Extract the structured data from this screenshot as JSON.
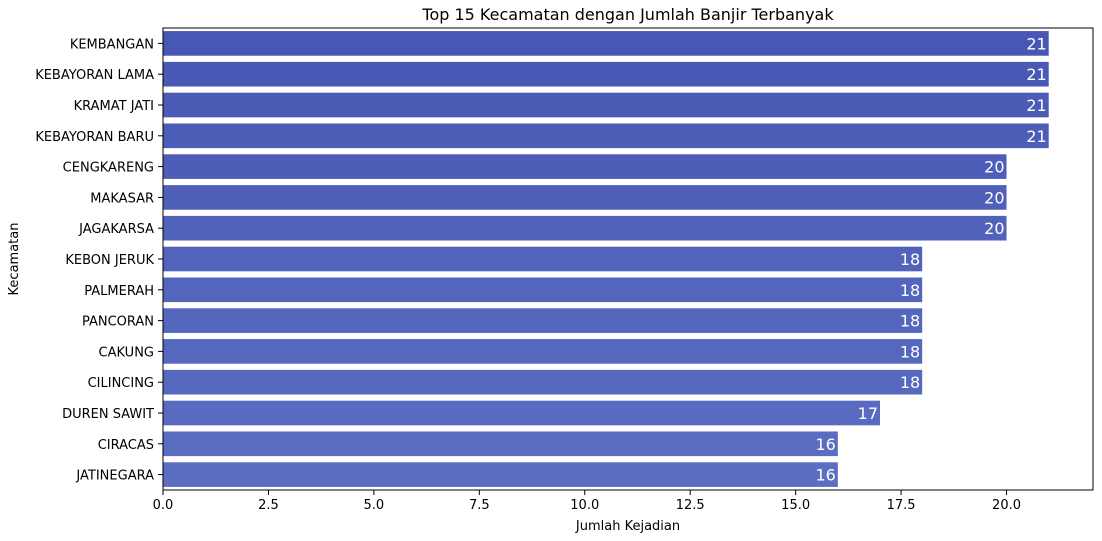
{
  "chart_data": {
    "type": "bar",
    "orientation": "horizontal",
    "title": "Top 15 Kecamatan dengan Jumlah Banjir Terbanyak",
    "xlabel": "Jumlah Kejadian",
    "ylabel": "Kecamatan",
    "categories": [
      "KEMBANGAN",
      "KEBAYORAN LAMA",
      "KRAMAT JATI",
      "KEBAYORAN BARU",
      "CENGKARENG",
      "MAKASAR",
      "JAGAKARSA",
      "KEBON JERUK",
      "PALMERAH",
      "PANCORAN",
      "CAKUNG",
      "CILINCING",
      "DUREN SAWIT",
      "CIRACAS",
      "JATINEGARA"
    ],
    "values": [
      21,
      21,
      21,
      21,
      20,
      20,
      20,
      18,
      18,
      18,
      18,
      18,
      17,
      16,
      16
    ],
    "xlim": [
      0,
      22.05
    ],
    "xticks": [
      0,
      2.5,
      5,
      7.5,
      10,
      12.5,
      15,
      17.5,
      20
    ],
    "xtick_labels": [
      "0.0",
      "2.5",
      "5.0",
      "7.5",
      "10.0",
      "12.5",
      "15.0",
      "17.5",
      "20.0"
    ],
    "grid": false,
    "data_labels": true,
    "colors": [
      "#4758b4",
      "#4959b5",
      "#4b5bb6",
      "#4c5db7",
      "#4e5eb8",
      "#4f60b9",
      "#5162ba",
      "#5263bb",
      "#5365bc",
      "#5566bd",
      "#5668be",
      "#5769bf",
      "#596bc0",
      "#5a6dc1",
      "#5c6ec2"
    ]
  }
}
